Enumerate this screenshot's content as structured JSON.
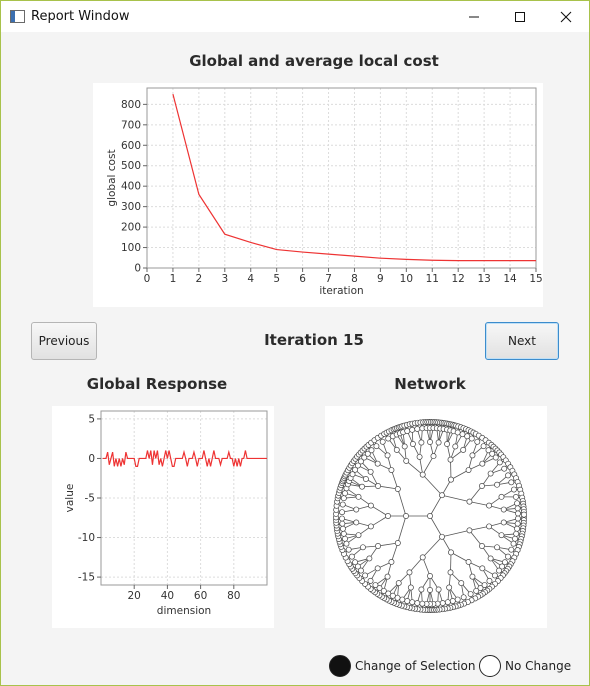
{
  "window": {
    "title": "Report Window"
  },
  "cost_chart": {
    "title": "Global and average local cost",
    "chart_data": {
      "type": "line",
      "title": "Global and average local cost",
      "xlabel": "iteration",
      "ylabel": "global cost",
      "xlim": [
        0,
        15
      ],
      "ylim": [
        0,
        880
      ],
      "xticks": [
        0,
        1,
        2,
        3,
        4,
        5,
        6,
        7,
        8,
        9,
        10,
        11,
        12,
        13,
        14,
        15
      ],
      "yticks": [
        0,
        100,
        200,
        300,
        400,
        500,
        600,
        700,
        800
      ],
      "grid": true,
      "series": [
        {
          "color": "#ee3333",
          "x": [
            1,
            2,
            3,
            4,
            5,
            6,
            7,
            8,
            9,
            10,
            11,
            12,
            13,
            14,
            15
          ],
          "y": [
            850,
            360,
            165,
            125,
            90,
            78,
            68,
            58,
            48,
            42,
            38,
            36,
            36,
            36,
            36
          ]
        }
      ]
    }
  },
  "navigation": {
    "previous_label": "Previous",
    "iteration_label": "Iteration 15",
    "next_label": "Next"
  },
  "response_chart": {
    "title": "Global Response",
    "chart_data": {
      "type": "line",
      "title": "Global Response",
      "xlabel": "dimension",
      "ylabel": "value",
      "xlim": [
        0,
        100
      ],
      "ylim": [
        -16,
        6
      ],
      "xticks": [
        20,
        40,
        60,
        80
      ],
      "yticks": [
        5,
        0,
        -5,
        -10,
        -15
      ],
      "grid": true,
      "series": [
        {
          "color": "#ee3333",
          "x": [
            1,
            2,
            3,
            4,
            5,
            6,
            7,
            8,
            9,
            10,
            11,
            12,
            13,
            14,
            15,
            16,
            17,
            18,
            19,
            20,
            21,
            22,
            23,
            24,
            25,
            26,
            27,
            28,
            29,
            30,
            31,
            32,
            33,
            34,
            35,
            36,
            37,
            38,
            39,
            40,
            41,
            42,
            43,
            44,
            45,
            46,
            47,
            48,
            49,
            50,
            51,
            52,
            53,
            54,
            55,
            56,
            57,
            58,
            59,
            60,
            61,
            62,
            63,
            64,
            65,
            66,
            67,
            68,
            69,
            70,
            71,
            72,
            73,
            74,
            75,
            76,
            77,
            78,
            79,
            80,
            81,
            82,
            83,
            84,
            85,
            86,
            87,
            88,
            89,
            90,
            91,
            92,
            93,
            94,
            95,
            96,
            97,
            98,
            99,
            100
          ],
          "y": [
            0,
            0,
            0,
            0.8,
            -0.8,
            0,
            0.8,
            -1,
            0,
            -1,
            0,
            -1,
            0,
            -0.8,
            0.8,
            0,
            0,
            0,
            0,
            0,
            -1,
            -1,
            0,
            0,
            0,
            0,
            0,
            1,
            0,
            1,
            -0.8,
            1,
            0,
            1,
            -0.8,
            0,
            -1,
            0,
            1,
            0,
            1,
            0,
            -1,
            -1,
            0,
            0,
            0,
            0,
            0,
            0.8,
            0,
            -1,
            0,
            0,
            0,
            0.8,
            0,
            -1,
            0,
            0,
            0,
            1,
            0,
            -1,
            0,
            -1,
            0,
            1,
            0,
            0,
            0,
            -0.8,
            0,
            0,
            0,
            0,
            0.8,
            0,
            0,
            -1,
            0,
            -1,
            0,
            -1,
            0,
            0,
            1,
            0,
            0,
            0,
            0,
            0,
            0,
            0,
            0,
            0,
            0,
            0,
            0,
            0
          ]
        }
      ]
    }
  },
  "network": {
    "title": "Network"
  },
  "legend": {
    "change_label": "Change of Selection",
    "nochange_label": "No Change",
    "change_color": "#111111",
    "nochange_color": "#ffffff"
  }
}
